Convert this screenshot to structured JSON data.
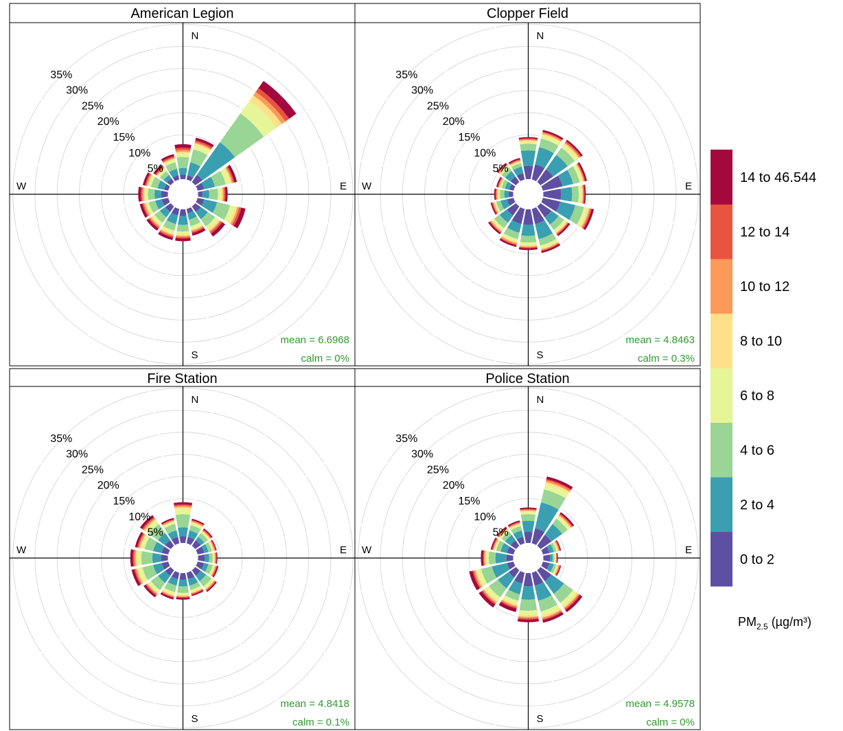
{
  "chart_data": {
    "type": "polar-stacked-bar",
    "directions": [
      "N",
      "NNE",
      "NE",
      "ENE",
      "E",
      "ESE",
      "SE",
      "SSE",
      "S",
      "SSW",
      "SW",
      "WSW",
      "W",
      "WNW",
      "NW",
      "NNW"
    ],
    "ring_ticks": [
      5,
      10,
      15,
      20,
      25,
      30,
      35
    ],
    "ring_tick_labels": [
      "5%",
      "10%",
      "15%",
      "20%",
      "25%",
      "30%",
      "35%"
    ],
    "compass_labels": {
      "n": "N",
      "e": "E",
      "s": "S",
      "w": "W"
    },
    "legend": {
      "title_main": "PM",
      "title_sub": "2.5",
      "title_unit": " (µg/m³)",
      "bins": [
        {
          "label": "0 to 2",
          "color": "#5e4fa2"
        },
        {
          "label": "2 to 4",
          "color": "#3a9fb0"
        },
        {
          "label": "4 to 6",
          "color": "#99d594"
        },
        {
          "label": "6 to 8",
          "color": "#e6f598"
        },
        {
          "label": "8 to 10",
          "color": "#fee08b"
        },
        {
          "label": "10 to 12",
          "color": "#fc9a5a"
        },
        {
          "label": "12 to 14",
          "color": "#e8543f"
        },
        {
          "label": "14 to 46.544",
          "color": "#a3093c"
        }
      ]
    },
    "panels": [
      {
        "title": "American Legion",
        "mean": "mean = 6.6968",
        "calm": "calm = 0%",
        "series": [
          [
            1.0,
            1.5,
            2.5,
            0.8,
            0.4,
            0.4,
            0.5,
            0.8
          ],
          [
            1.0,
            3.0,
            3.0,
            1.0,
            0.4,
            0.3,
            0.4,
            0.6
          ],
          [
            2.0,
            9.0,
            8.0,
            3.5,
            1.5,
            1.0,
            1.0,
            2.0
          ],
          [
            1.5,
            2.5,
            2.5,
            1.0,
            0.4,
            0.3,
            0.3,
            0.6
          ],
          [
            1.0,
            1.5,
            2.0,
            0.8,
            0.3,
            0.3,
            0.3,
            0.5
          ],
          [
            1.5,
            3.0,
            3.0,
            1.2,
            0.5,
            0.4,
            0.5,
            1.0
          ],
          [
            1.5,
            2.0,
            2.0,
            0.9,
            0.4,
            0.3,
            0.4,
            0.8
          ],
          [
            1.0,
            1.5,
            1.5,
            0.7,
            0.3,
            0.3,
            0.3,
            0.6
          ],
          [
            1.5,
            2.0,
            1.5,
            0.7,
            0.3,
            0.3,
            0.3,
            0.6
          ],
          [
            1.5,
            2.0,
            1.5,
            0.7,
            0.3,
            0.3,
            0.3,
            0.6
          ],
          [
            1.5,
            1.5,
            1.5,
            0.7,
            0.3,
            0.3,
            0.3,
            0.6
          ],
          [
            1.5,
            1.5,
            1.5,
            0.6,
            0.3,
            0.3,
            0.3,
            0.6
          ],
          [
            1.5,
            1.5,
            1.5,
            0.7,
            0.3,
            0.3,
            0.3,
            0.6
          ],
          [
            1.0,
            1.5,
            1.5,
            0.6,
            0.3,
            0.2,
            0.3,
            0.5
          ],
          [
            1.0,
            1.0,
            1.0,
            0.5,
            0.3,
            0.2,
            0.3,
            0.5
          ],
          [
            1.0,
            1.5,
            1.5,
            0.6,
            0.3,
            0.2,
            0.3,
            0.5
          ]
        ]
      },
      {
        "title": "Clopper Field",
        "mean": "mean = 4.8463",
        "calm": "calm = 0.3%",
        "series": [
          [
            3.0,
            3.5,
            1.5,
            0.5,
            0.3,
            0.2,
            0.2,
            0.3
          ],
          [
            3.5,
            4.0,
            2.0,
            0.8,
            0.3,
            0.3,
            0.2,
            0.4
          ],
          [
            3.5,
            4.0,
            2.0,
            0.8,
            0.4,
            0.3,
            0.3,
            0.4
          ],
          [
            4.5,
            2.5,
            1.5,
            0.6,
            0.3,
            0.2,
            0.2,
            0.4
          ],
          [
            4.0,
            2.5,
            1.5,
            0.6,
            0.3,
            0.2,
            0.2,
            0.3
          ],
          [
            4.0,
            3.5,
            2.0,
            0.8,
            0.4,
            0.3,
            0.3,
            0.5
          ],
          [
            3.0,
            2.0,
            1.5,
            0.6,
            0.3,
            0.2,
            0.2,
            0.4
          ],
          [
            3.5,
            3.5,
            1.5,
            0.6,
            0.3,
            0.2,
            0.2,
            0.4
          ],
          [
            3.5,
            2.5,
            1.5,
            0.6,
            0.3,
            0.2,
            0.2,
            0.4
          ],
          [
            3.5,
            2.0,
            1.5,
            0.6,
            0.3,
            0.3,
            0.2,
            0.4
          ],
          [
            2.5,
            2.0,
            1.5,
            0.6,
            0.3,
            0.2,
            0.2,
            0.4
          ],
          [
            1.5,
            1.5,
            1.0,
            0.4,
            0.2,
            0.2,
            0.2,
            0.3
          ],
          [
            1.0,
            1.0,
            1.0,
            0.4,
            0.2,
            0.2,
            0.2,
            0.3
          ],
          [
            1.0,
            1.0,
            0.8,
            0.3,
            0.2,
            0.2,
            0.2,
            0.3
          ],
          [
            1.5,
            1.5,
            1.0,
            0.4,
            0.2,
            0.2,
            0.2,
            0.3
          ],
          [
            1.5,
            1.5,
            0.8,
            0.3,
            0.2,
            0.2,
            0.2,
            0.3
          ]
        ]
      },
      {
        "title": "Fire Station",
        "mean": "mean = 4.8418",
        "calm": "calm = 0.1%",
        "series": [
          [
            1.5,
            2.0,
            3.0,
            1.2,
            0.4,
            0.3,
            0.3,
            0.5
          ],
          [
            1.5,
            1.5,
            1.2,
            0.5,
            0.3,
            0.2,
            0.2,
            0.3
          ],
          [
            1.5,
            1.0,
            1.0,
            0.4,
            0.2,
            0.2,
            0.2,
            0.3
          ],
          [
            1.5,
            1.0,
            0.8,
            0.3,
            0.2,
            0.2,
            0.2,
            0.2
          ],
          [
            1.5,
            1.0,
            0.8,
            0.3,
            0.2,
            0.2,
            0.2,
            0.2
          ],
          [
            1.5,
            1.0,
            1.0,
            0.4,
            0.2,
            0.2,
            0.2,
            0.3
          ],
          [
            1.5,
            1.5,
            1.5,
            0.6,
            0.2,
            0.2,
            0.2,
            0.3
          ],
          [
            1.5,
            1.5,
            1.0,
            0.5,
            0.2,
            0.2,
            0.2,
            0.3
          ],
          [
            1.5,
            1.5,
            1.5,
            0.5,
            0.2,
            0.2,
            0.2,
            0.4
          ],
          [
            1.5,
            1.5,
            1.5,
            0.6,
            0.3,
            0.2,
            0.2,
            0.4
          ],
          [
            1.5,
            2.0,
            2.0,
            0.7,
            0.3,
            0.2,
            0.3,
            0.5
          ],
          [
            1.5,
            2.0,
            2.5,
            1.0,
            0.3,
            0.3,
            0.3,
            0.6
          ],
          [
            1.5,
            2.0,
            2.5,
            1.0,
            0.3,
            0.3,
            0.3,
            0.6
          ],
          [
            1.5,
            2.0,
            2.0,
            0.8,
            0.3,
            0.3,
            0.3,
            0.5
          ],
          [
            1.5,
            2.0,
            2.5,
            1.0,
            0.3,
            0.3,
            0.3,
            0.6
          ],
          [
            1.5,
            1.5,
            1.5,
            0.5,
            0.2,
            0.2,
            0.2,
            0.3
          ]
        ]
      },
      {
        "title": "Police Station",
        "mean": "mean = 4.9578",
        "calm": "calm = 0%",
        "series": [
          [
            2.5,
            2.5,
            1.5,
            0.5,
            0.3,
            0.2,
            0.2,
            0.3
          ],
          [
            3.5,
            6.0,
            3.0,
            1.2,
            0.5,
            0.4,
            0.3,
            0.6
          ],
          [
            3.0,
            3.0,
            1.5,
            0.6,
            0.3,
            0.3,
            0.2,
            0.4
          ],
          [
            1.5,
            1.0,
            0.6,
            0.3,
            0.2,
            0.2,
            0.2,
            0.2
          ],
          [
            1.5,
            0.6,
            0.4,
            0.2,
            0.2,
            0.1,
            0.1,
            0.2
          ],
          [
            1.5,
            1.0,
            0.6,
            0.3,
            0.2,
            0.2,
            0.2,
            0.2
          ],
          [
            3.0,
            3.5,
            2.5,
            1.0,
            0.4,
            0.3,
            0.3,
            0.6
          ],
          [
            3.0,
            3.5,
            2.5,
            1.0,
            0.4,
            0.3,
            0.3,
            0.6
          ],
          [
            3.0,
            3.0,
            2.5,
            1.0,
            0.4,
            0.3,
            0.3,
            0.6
          ],
          [
            2.5,
            2.5,
            1.5,
            0.8,
            0.4,
            0.3,
            0.3,
            0.8
          ],
          [
            2.0,
            3.0,
            2.5,
            1.0,
            0.4,
            0.3,
            0.3,
            0.8
          ],
          [
            1.5,
            3.5,
            2.5,
            1.0,
            0.4,
            0.3,
            0.3,
            0.8
          ],
          [
            1.5,
            2.5,
            1.5,
            0.6,
            0.3,
            0.2,
            0.2,
            0.5
          ],
          [
            1.5,
            1.5,
            1.0,
            0.4,
            0.2,
            0.2,
            0.2,
            0.3
          ],
          [
            1.5,
            1.5,
            1.0,
            0.4,
            0.2,
            0.2,
            0.2,
            0.3
          ],
          [
            1.5,
            1.5,
            1.0,
            0.4,
            0.2,
            0.2,
            0.2,
            0.3
          ]
        ]
      }
    ]
  }
}
